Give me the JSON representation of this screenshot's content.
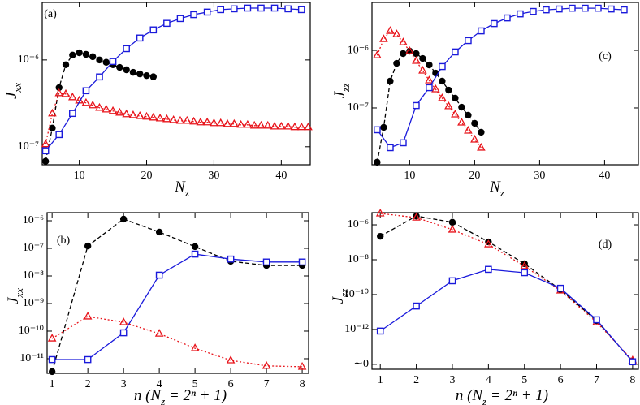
{
  "chart_data": [
    {
      "type": "line",
      "panel_label": "(a)",
      "xlabel": [
        "N",
        "z"
      ],
      "ylabel": [
        "J",
        "xx"
      ],
      "ylog": true,
      "xlim": [
        4.5,
        44.3
      ],
      "ylim": [
        6.2e-08,
        4.6e-06
      ],
      "xticks": [
        10,
        20,
        30,
        40
      ],
      "yticks": [
        {
          "value": 1e-07,
          "label": "10⁻⁷"
        },
        {
          "value": 1e-06,
          "label": "10⁻⁶"
        }
      ],
      "series": [
        {
          "color": "#000000",
          "linestyle": "dashed",
          "marker": "circle",
          "x": [
            5,
            6,
            7,
            8,
            9,
            10,
            11,
            12,
            13,
            14,
            15,
            16,
            17,
            18,
            19,
            20,
            21
          ],
          "values": [
            6.8e-08,
            1.64e-07,
            4.8e-07,
            8.8e-07,
            1.14e-06,
            1.21e-06,
            1.16e-06,
            1.09e-06,
            1e-06,
            9.4e-07,
            8.8e-07,
            8.2e-07,
            7.7e-07,
            7.2e-07,
            6.9e-07,
            6.6e-07,
            6.4e-07
          ]
        },
        {
          "color": "#e8141b",
          "linestyle": "dotted",
          "marker": "triangle",
          "x": [
            5,
            6,
            7,
            8,
            9,
            10,
            11,
            12,
            13,
            14,
            15,
            16,
            17,
            18,
            19,
            20,
            21,
            22,
            23,
            24,
            25,
            26,
            27,
            28,
            29,
            30,
            31,
            32,
            33,
            34,
            35,
            36,
            37,
            38,
            39,
            40,
            41,
            42,
            43,
            44
          ],
          "values": [
            1.07e-07,
            2.42e-07,
            4.14e-07,
            4.05e-07,
            3.72e-07,
            3.41e-07,
            3.2e-07,
            3e-07,
            2.81e-07,
            2.69e-07,
            2.58e-07,
            2.47e-07,
            2.37e-07,
            2.31e-07,
            2.26e-07,
            2.22e-07,
            2.17e-07,
            2.12e-07,
            2.08e-07,
            2.03e-07,
            1.99e-07,
            1.99e-07,
            1.95e-07,
            1.91e-07,
            1.91e-07,
            1.87e-07,
            1.87e-07,
            1.83e-07,
            1.83e-07,
            1.79e-07,
            1.79e-07,
            1.75e-07,
            1.75e-07,
            1.75e-07,
            1.71e-07,
            1.71e-07,
            1.71e-07,
            1.68e-07,
            1.68e-07,
            1.68e-07
          ]
        },
        {
          "color": "#1a1adb",
          "linestyle": "solid",
          "marker": "square",
          "x": [
            5,
            7,
            9,
            11,
            13,
            15,
            17,
            19,
            21,
            23,
            25,
            27,
            29,
            31,
            33,
            35,
            37,
            39,
            41,
            43
          ],
          "values": [
            8.98e-08,
            1.38e-07,
            2.42e-07,
            4.42e-07,
            6.37e-07,
            9.6e-07,
            1.35e-06,
            1.79e-06,
            2.22e-06,
            2.64e-06,
            3e-06,
            3.33e-06,
            3.56e-06,
            3.8e-06,
            3.88e-06,
            3.96e-06,
            3.96e-06,
            3.96e-06,
            3.88e-06,
            3.8e-06
          ]
        }
      ]
    },
    {
      "type": "line",
      "panel_label": "(c)",
      "xlabel": [
        "N",
        "z"
      ],
      "ylabel": [
        "J",
        "zz"
      ],
      "ylog": true,
      "xlim": [
        4.2,
        45.2
      ],
      "ylim": [
        1.03e-08,
        6.8e-06
      ],
      "xticks": [
        10,
        20,
        30,
        40
      ],
      "yticks": [
        {
          "value": 1e-07,
          "label": "10⁻⁷"
        },
        {
          "value": 1e-06,
          "label": "10⁻⁶"
        }
      ],
      "series": [
        {
          "color": "#000000",
          "linestyle": "dashed",
          "marker": "circle",
          "x": [
            5,
            6,
            7,
            8,
            9,
            10,
            11,
            12,
            13,
            14,
            15,
            16,
            17,
            18,
            19,
            20,
            21
          ],
          "values": [
            1.14e-08,
            4.59e-08,
            2.92e-07,
            5.95e-07,
            8.8e-07,
            9.7e-07,
            8.8e-07,
            7.23e-07,
            5.58e-07,
            4.03e-07,
            2.92e-07,
            2.04e-07,
            1.48e-07,
            1.03e-07,
            7.47e-08,
            5.4e-08,
            3.78e-08
          ]
        },
        {
          "color": "#e8141b",
          "linestyle": "dotted",
          "marker": "triangle",
          "x": [
            5,
            6,
            7,
            8,
            9,
            10,
            11,
            12,
            13,
            14,
            15,
            16,
            17,
            18,
            19,
            20,
            21
          ],
          "values": [
            8.2e-07,
            1.57e-06,
            2.18e-06,
            1.91e-06,
            1.38e-06,
            9.7e-07,
            6.56e-07,
            4.45e-07,
            3.01e-07,
            2.11e-07,
            1.48e-07,
            1.07e-07,
            7.71e-08,
            5.57e-08,
            4.03e-08,
            2.82e-08,
            2.04e-08
          ]
        },
        {
          "color": "#1a1adb",
          "linestyle": "solid",
          "marker": "square",
          "x": [
            5,
            7,
            9,
            11,
            13,
            15,
            17,
            19,
            21,
            23,
            25,
            27,
            29,
            31,
            33,
            35,
            37,
            39,
            41,
            43
          ],
          "values": [
            4.17e-08,
            2.04e-08,
            2.48e-08,
            1.1e-07,
            2.25e-07,
            5.23e-07,
            9.4e-07,
            1.48e-06,
            2.18e-06,
            2.92e-06,
            3.66e-06,
            4.3e-06,
            4.74e-06,
            5.06e-06,
            5.23e-06,
            5.4e-06,
            5.4e-06,
            5.4e-06,
            5.23e-06,
            5.06e-06
          ]
        }
      ]
    },
    {
      "type": "line",
      "panel_label": "(b)",
      "xlabel": [
        "n (N",
        "z",
        " = 2ⁿ + 1)"
      ],
      "ylabel": [
        "J",
        "xx"
      ],
      "ylog": true,
      "xlim": [
        0.86,
        8.18
      ],
      "ylim": [
        2.95e-12,
        1.97e-06
      ],
      "xticks": [
        1,
        2,
        3,
        4,
        5,
        6,
        7,
        8
      ],
      "yticks": [
        {
          "value": 1e-11,
          "label": "10⁻¹¹"
        },
        {
          "value": 1e-10,
          "label": "10⁻¹⁰"
        },
        {
          "value": 1e-09,
          "label": "10⁻⁹"
        },
        {
          "value": 1e-08,
          "label": "10⁻⁸"
        },
        {
          "value": 1e-07,
          "label": "10⁻⁷"
        },
        {
          "value": 1e-06,
          "label": "10⁻⁶"
        }
      ],
      "x": [
        1,
        2,
        3,
        4,
        5,
        6,
        7,
        8
      ],
      "series": [
        {
          "color": "#000000",
          "linestyle": "dashed",
          "marker": "circle",
          "values": [
            3.4e-12,
            1.22e-07,
            1.15e-06,
            3.9e-07,
            1.15e-07,
            3.4e-08,
            2.4e-08,
            2.4e-08
          ]
        },
        {
          "color": "#e8141b",
          "linestyle": "dotted",
          "marker": "triangle",
          "values": [
            5.4e-11,
            3.4e-10,
            2.1e-10,
            8.1e-11,
            2.4e-11,
            8.7e-12,
            5.5e-12,
            5.1e-12
          ]
        },
        {
          "color": "#1a1adb",
          "linestyle": "solid",
          "marker": "square",
          "values": [
            9.3e-12,
            9.3e-12,
            8.7e-11,
            1.07e-08,
            6.2e-08,
            4.1e-08,
            3.2e-08,
            3.2e-08
          ]
        }
      ]
    },
    {
      "type": "line",
      "panel_label": "(d)",
      "xlabel": [
        "n (N",
        "z",
        " = 2ⁿ + 1)"
      ],
      "ylabel": [
        "J",
        "zz"
      ],
      "ylog": true,
      "xlim": [
        0.77,
        8.16
      ],
      "ylim": [
        5.2e-15,
        5e-06
      ],
      "xticks": [
        1,
        2,
        3,
        4,
        5,
        6,
        7,
        8
      ],
      "yticks": [
        {
          "value": 1e-14,
          "label": "∼0"
        },
        {
          "value": 1e-12,
          "label": "10⁻¹²"
        },
        {
          "value": 1e-10,
          "label": "10⁻¹⁰"
        },
        {
          "value": 1e-08,
          "label": "10⁻⁸"
        },
        {
          "value": 1e-06,
          "label": "10⁻⁶"
        }
      ],
      "x": [
        1,
        2,
        3,
        4,
        5,
        6,
        7,
        8
      ],
      "series": [
        {
          "color": "#000000",
          "linestyle": "dashed",
          "marker": "circle",
          "values": [
            2.2e-07,
            3.2e-06,
            1.4e-06,
            1.05e-07,
            5.9e-09,
            1.9e-10,
            3.2e-12,
            1.5e-14
          ]
        },
        {
          "color": "#e8141b",
          "linestyle": "dotted",
          "marker": "triangle",
          "values": [
            4.5e-06,
            2.6e-06,
            5.3e-07,
            7.6e-08,
            4.3e-09,
            1.7e-10,
            2.6e-12,
            1.7e-14
          ]
        },
        {
          "color": "#1a1adb",
          "linestyle": "solid",
          "marker": "square",
          "values": [
            8.1e-13,
            2.2e-11,
            6.2e-10,
            2.8e-09,
            1.8e-09,
            2.3e-10,
            3.6e-12,
            1.4e-14
          ]
        }
      ]
    }
  ]
}
